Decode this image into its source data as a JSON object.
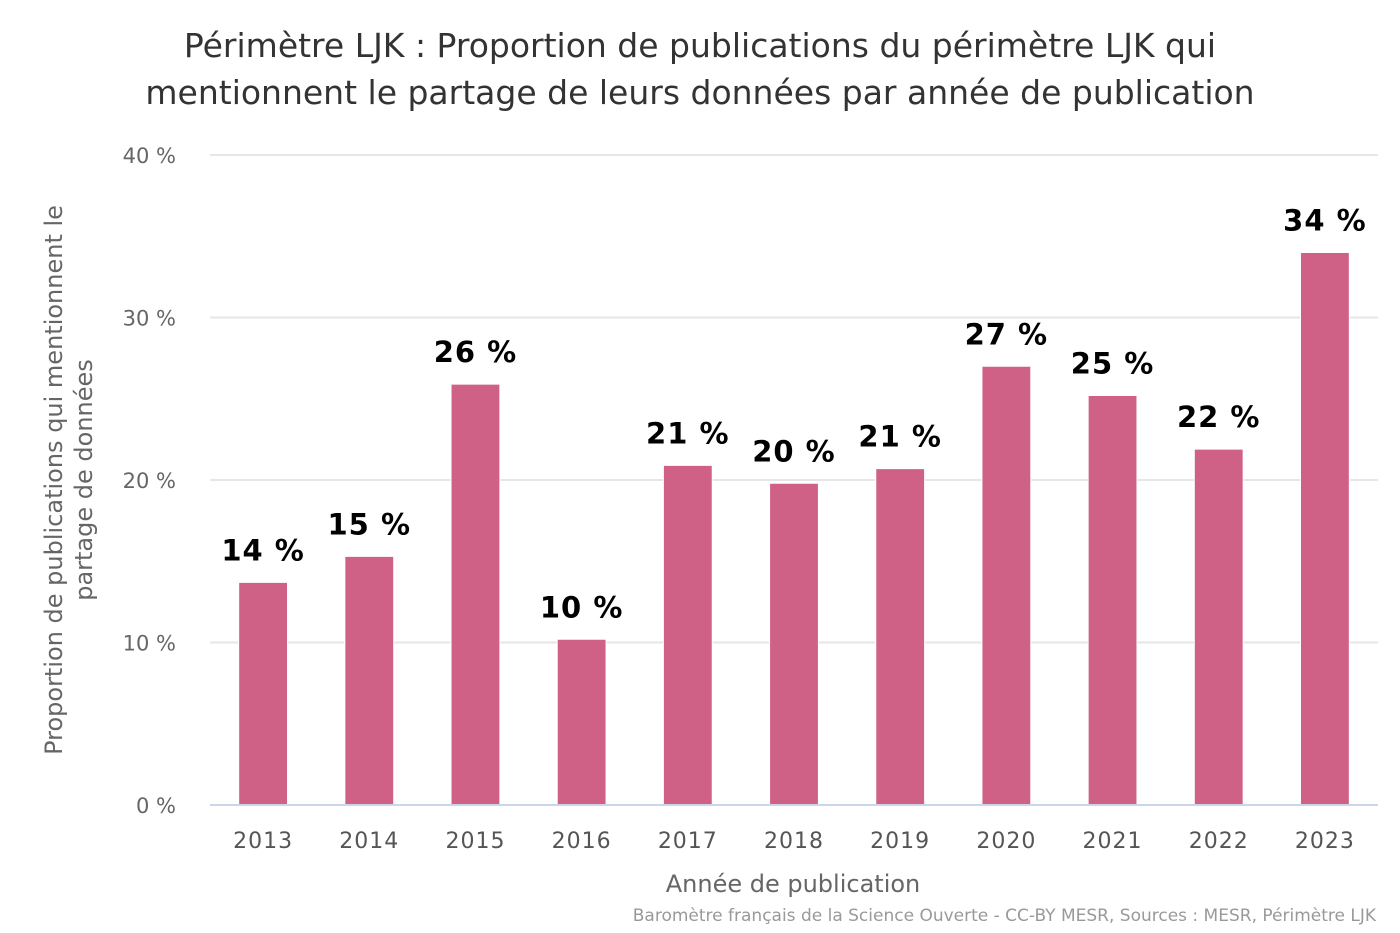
{
  "chart_data": {
    "type": "bar",
    "title_lines": [
      "Périmètre LJK : Proportion de publications du périmètre LJK qui",
      "mentionnent le partage de leurs données par année de publication"
    ],
    "xlabel": "Année de publication",
    "ylabel_lines": [
      "Proportion de publications qui mentionnent le",
      "partage de données"
    ],
    "categories": [
      "2013",
      "2014",
      "2015",
      "2016",
      "2017",
      "2018",
      "2019",
      "2020",
      "2021",
      "2022",
      "2023"
    ],
    "values": [
      13.7,
      15.3,
      25.9,
      10.2,
      20.9,
      19.8,
      20.7,
      27.0,
      25.2,
      21.9,
      34.0
    ],
    "data_labels": [
      "14 %",
      "15 %",
      "26 %",
      "10 %",
      "21 %",
      "20 %",
      "21 %",
      "27 %",
      "25 %",
      "22 %",
      "34 %"
    ],
    "ylim": [
      0,
      40
    ],
    "yticks": [
      0,
      10,
      20,
      30,
      40
    ],
    "ytick_labels": [
      "0 %",
      "10 %",
      "20 %",
      "30 %",
      "40 %"
    ],
    "grid": true,
    "legend": "none",
    "bar_color": "#d06186",
    "credits": "Baromètre français de la Science Ouverte - CC-BY MESR, Sources : MESR, Périmètre LJK"
  }
}
